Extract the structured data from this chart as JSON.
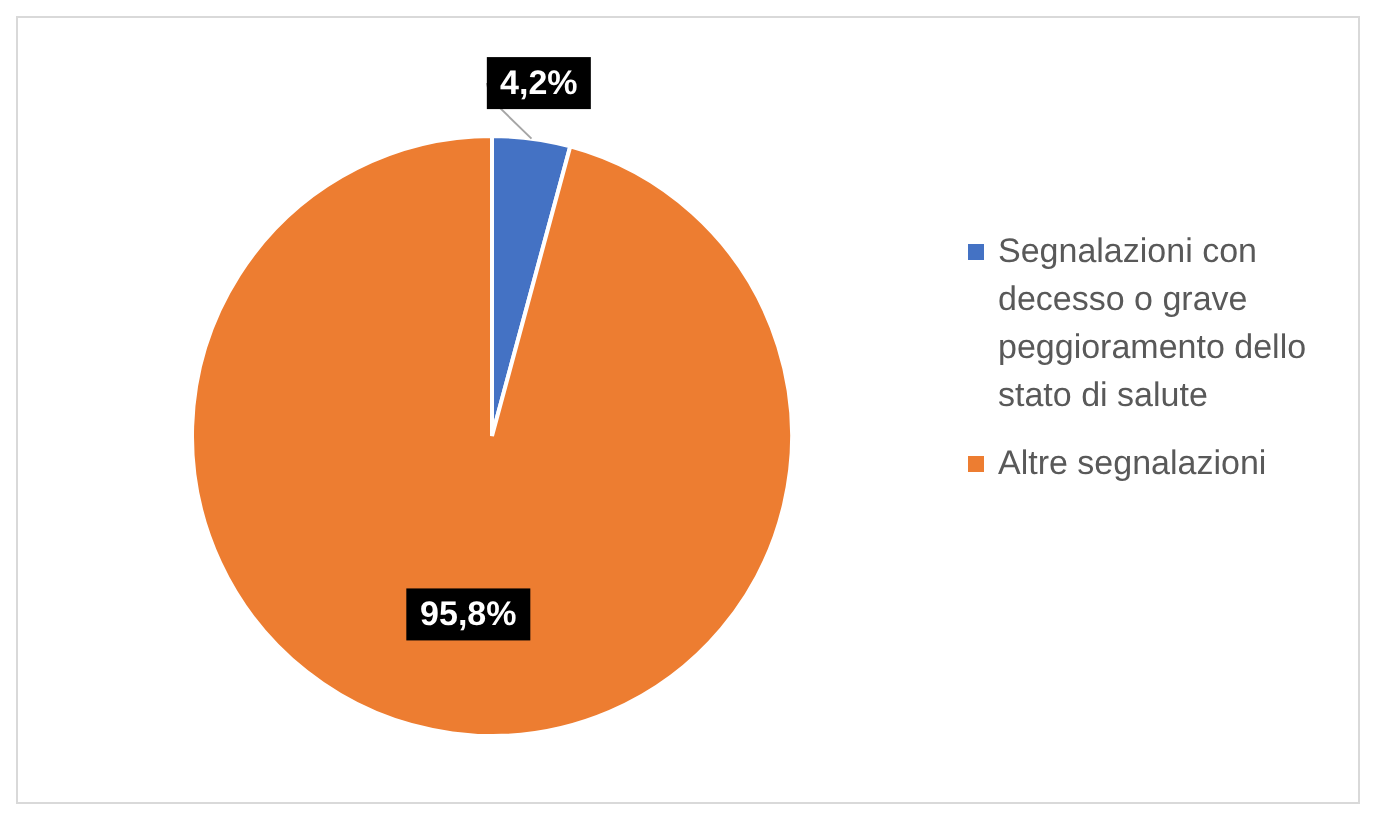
{
  "chart_data": {
    "type": "pie",
    "categories": [
      "Segnalazioni con decesso o grave peggioramento dello stato di salute",
      "Altre segnalazioni"
    ],
    "values": [
      4.2,
      95.8
    ],
    "colors": [
      "#4472c4",
      "#ed7d31"
    ],
    "value_labels": [
      "4,2%",
      "95,8%"
    ],
    "legend": "right"
  }
}
